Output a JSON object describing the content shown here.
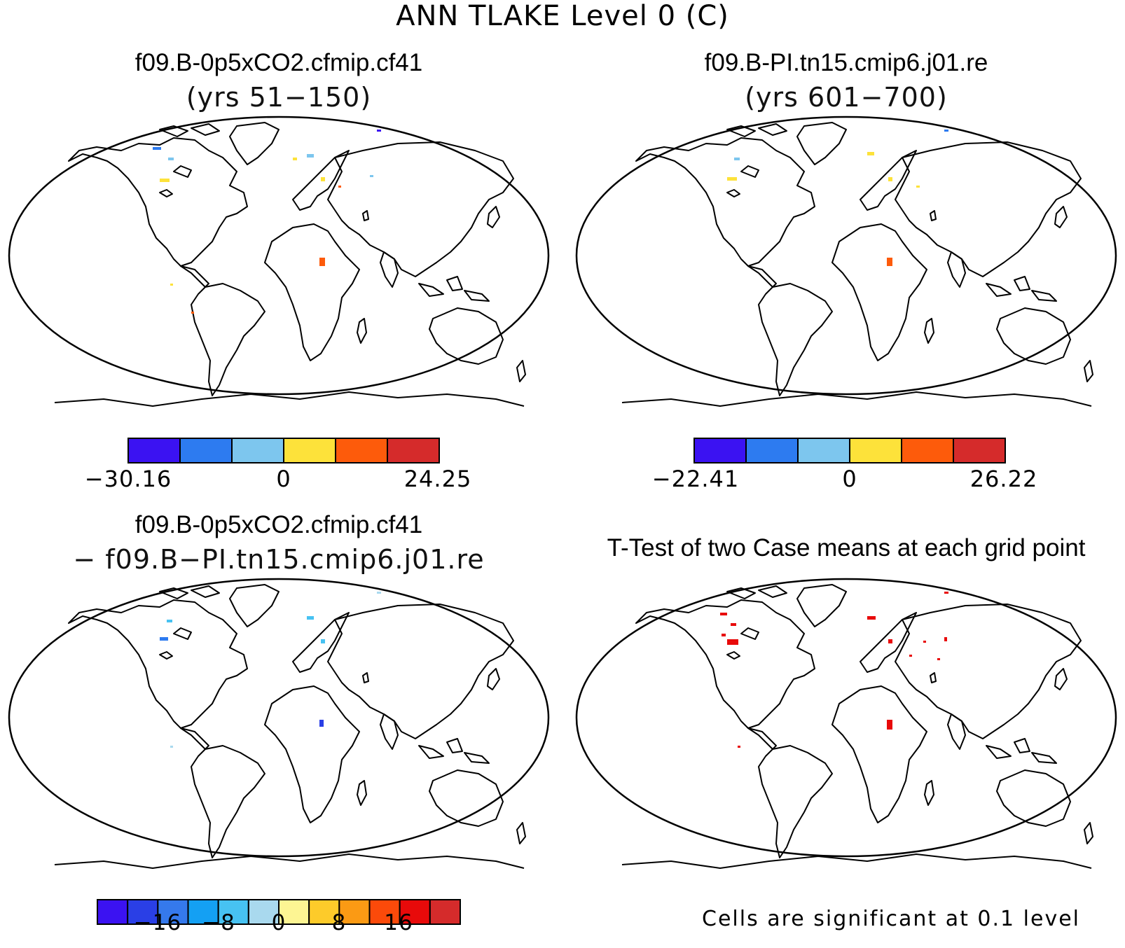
{
  "main_title": "ANN TLAKE Level 0 (C)",
  "panels": [
    {
      "title": "f09.B-0p5xCO2.cfmip.cf41",
      "subtitle": "(yrs 51−150)"
    },
    {
      "title": "f09.B-PI.tn15.cmip6.j01.re",
      "subtitle": "(yrs 601−700)"
    },
    {
      "title": "f09.B-0p5xCO2.cfmip.cf41",
      "subtitle": "− f09.B−PI.tn15.cmip6.j01.re"
    },
    {
      "title": "T-Test of two Case means at each grid point",
      "subtitle": ""
    }
  ],
  "colorbars": {
    "case1": {
      "colors": [
        "#3b12f2",
        "#2d7bf0",
        "#7dc6ee",
        "#fde23a",
        "#fd5b0b",
        "#d52b2b"
      ],
      "labels": [
        "−30.16",
        "0",
        "24.25"
      ]
    },
    "case2": {
      "colors": [
        "#3b12f2",
        "#2d7bf0",
        "#7dc6ee",
        "#fde23a",
        "#fd5b0b",
        "#d52b2b"
      ],
      "labels": [
        "−22.41",
        "0",
        "26.22"
      ]
    },
    "diff": {
      "colors": [
        "#3b12f2",
        "#2a3fe6",
        "#3579ec",
        "#14a0f3",
        "#47c2f2",
        "#a9d9ee",
        "#fdf593",
        "#fdcb2a",
        "#fb9a14",
        "#fb4a0a",
        "#e80a0a",
        "#d52b2b"
      ],
      "labels": [
        "−16",
        "−8",
        "0",
        "8",
        "16"
      ]
    }
  },
  "significance_note": "Cells are significant at 0.1 level"
}
